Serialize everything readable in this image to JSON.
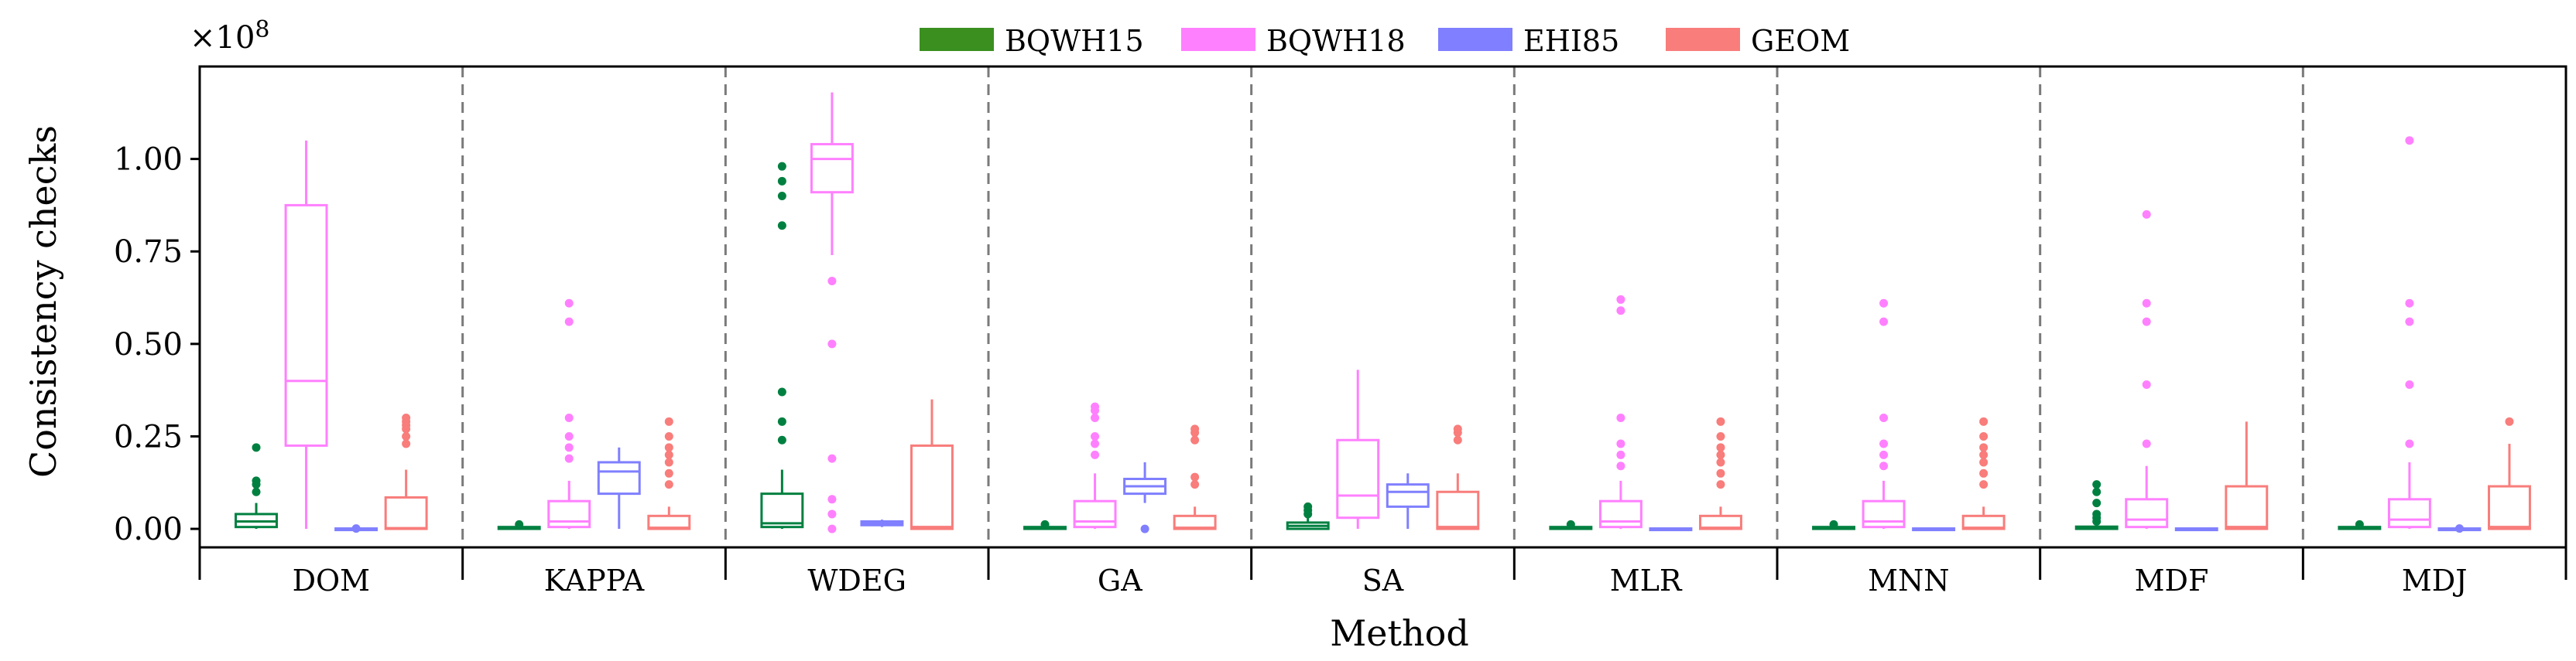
{
  "chart_data": {
    "type": "box",
    "title": "",
    "xlabel": "Method",
    "ylabel": "Consistency checks",
    "y_scale_label": "×10^8",
    "ylim": [
      -0.05,
      1.25
    ],
    "yticks": [
      0.0,
      0.25,
      0.5,
      0.75,
      1.0
    ],
    "ytick_labels": [
      "0.00",
      "0.25",
      "0.50",
      "0.75",
      "1.00"
    ],
    "legend_position": "top-center",
    "grid": false,
    "categories": [
      "DOM",
      "KAPPA",
      "WDEG",
      "GA",
      "SA",
      "MLR",
      "MNN",
      "MDF",
      "MDJ"
    ],
    "series": [
      {
        "name": "BQWH15",
        "color": "#008040",
        "legend_color": "#3a8f1f",
        "boxes": [
          {
            "q1": 0.005,
            "median": 0.02,
            "q3": 0.04,
            "whisker_low": 0.0,
            "whisker_high": 0.07,
            "outliers": [
              0.1,
              0.12,
              0.13,
              0.22
            ]
          },
          {
            "q1": 0.0,
            "median": 0.002,
            "q3": 0.005,
            "whisker_low": 0.0,
            "whisker_high": 0.007,
            "outliers": [
              0.012
            ]
          },
          {
            "q1": 0.005,
            "median": 0.015,
            "q3": 0.095,
            "whisker_low": 0.0,
            "whisker_high": 0.16,
            "outliers": [
              0.24,
              0.29,
              0.37,
              0.82,
              0.9,
              0.94,
              0.98
            ]
          },
          {
            "q1": 0.0,
            "median": 0.002,
            "q3": 0.005,
            "whisker_low": 0.0,
            "whisker_high": 0.007,
            "outliers": [
              0.012
            ]
          },
          {
            "q1": 0.0,
            "median": 0.008,
            "q3": 0.017,
            "whisker_low": 0.0,
            "whisker_high": 0.03,
            "outliers": [
              0.04,
              0.05,
              0.06
            ]
          },
          {
            "q1": 0.0,
            "median": 0.002,
            "q3": 0.005,
            "whisker_low": 0.0,
            "whisker_high": 0.007,
            "outliers": [
              0.012
            ]
          },
          {
            "q1": 0.0,
            "median": 0.002,
            "q3": 0.005,
            "whisker_low": 0.0,
            "whisker_high": 0.007,
            "outliers": [
              0.012
            ]
          },
          {
            "q1": 0.0,
            "median": 0.003,
            "q3": 0.006,
            "whisker_low": 0.0,
            "whisker_high": 0.012,
            "outliers": [
              0.02,
              0.03,
              0.04,
              0.07,
              0.1,
              0.12
            ]
          },
          {
            "q1": 0.0,
            "median": 0.002,
            "q3": 0.005,
            "whisker_low": 0.0,
            "whisker_high": 0.007,
            "outliers": [
              0.012
            ]
          }
        ]
      },
      {
        "name": "BQWH18",
        "color": "#ff80ff",
        "legend_color": "#ff80ff",
        "boxes": [
          {
            "q1": 0.225,
            "median": 0.4,
            "q3": 0.875,
            "whisker_low": 0.0,
            "whisker_high": 1.05,
            "outliers": []
          },
          {
            "q1": 0.005,
            "median": 0.02,
            "q3": 0.075,
            "whisker_low": 0.0,
            "whisker_high": 0.13,
            "outliers": [
              0.19,
              0.22,
              0.25,
              0.3,
              0.56,
              0.61
            ]
          },
          {
            "q1": 0.91,
            "median": 1.0,
            "q3": 1.04,
            "whisker_low": 0.74,
            "whisker_high": 1.18,
            "outliers": [
              0.67,
              0.5,
              0.19,
              0.08,
              0.04,
              0.0
            ]
          },
          {
            "q1": 0.005,
            "median": 0.02,
            "q3": 0.075,
            "whisker_low": 0.0,
            "whisker_high": 0.15,
            "outliers": [
              0.2,
              0.23,
              0.25,
              0.3,
              0.32,
              0.33
            ]
          },
          {
            "q1": 0.03,
            "median": 0.09,
            "q3": 0.24,
            "whisker_low": 0.0,
            "whisker_high": 0.43,
            "outliers": []
          },
          {
            "q1": 0.005,
            "median": 0.02,
            "q3": 0.075,
            "whisker_low": 0.0,
            "whisker_high": 0.13,
            "outliers": [
              0.17,
              0.2,
              0.23,
              0.3,
              0.59,
              0.62
            ]
          },
          {
            "q1": 0.005,
            "median": 0.02,
            "q3": 0.075,
            "whisker_low": 0.0,
            "whisker_high": 0.13,
            "outliers": [
              0.17,
              0.2,
              0.23,
              0.3,
              0.56,
              0.61
            ]
          },
          {
            "q1": 0.005,
            "median": 0.025,
            "q3": 0.08,
            "whisker_low": 0.0,
            "whisker_high": 0.17,
            "outliers": [
              0.23,
              0.39,
              0.56,
              0.61,
              0.85
            ]
          },
          {
            "q1": 0.005,
            "median": 0.025,
            "q3": 0.08,
            "whisker_low": 0.0,
            "whisker_high": 0.18,
            "outliers": [
              0.23,
              0.39,
              0.56,
              0.61,
              1.05
            ]
          }
        ]
      },
      {
        "name": "EHI85",
        "color": "#7f7fff",
        "legend_color": "#7f7fff",
        "boxes": [
          {
            "q1": 0.0,
            "median": 0.0,
            "q3": 0.001,
            "whisker_low": 0.0,
            "whisker_high": 0.001,
            "outliers": [
              0.001
            ]
          },
          {
            "q1": 0.095,
            "median": 0.155,
            "q3": 0.18,
            "whisker_low": 0.0,
            "whisker_high": 0.22,
            "outliers": []
          },
          {
            "q1": 0.01,
            "median": 0.015,
            "q3": 0.02,
            "whisker_low": 0.005,
            "whisker_high": 0.025,
            "outliers": []
          },
          {
            "q1": 0.095,
            "median": 0.115,
            "q3": 0.135,
            "whisker_low": 0.07,
            "whisker_high": 0.18,
            "outliers": [
              0.0
            ]
          },
          {
            "q1": 0.06,
            "median": 0.1,
            "q3": 0.12,
            "whisker_low": 0.0,
            "whisker_high": 0.15,
            "outliers": []
          },
          {
            "q1": 0.0,
            "median": 0.0,
            "q3": 0.001,
            "whisker_low": 0.0,
            "whisker_high": 0.001,
            "outliers": []
          },
          {
            "q1": 0.0,
            "median": 0.0,
            "q3": 0.001,
            "whisker_low": 0.0,
            "whisker_high": 0.001,
            "outliers": []
          },
          {
            "q1": 0.0,
            "median": 0.0,
            "q3": 0.001,
            "whisker_low": 0.0,
            "whisker_high": 0.001,
            "outliers": []
          },
          {
            "q1": 0.0,
            "median": 0.0,
            "q3": 0.001,
            "whisker_low": 0.0,
            "whisker_high": 0.001,
            "outliers": [
              0.001
            ]
          }
        ]
      },
      {
        "name": "GEOM",
        "color": "#f87d7b",
        "legend_color": "#f87d7b",
        "boxes": [
          {
            "q1": 0.0,
            "median": 0.002,
            "q3": 0.085,
            "whisker_low": 0.0,
            "whisker_high": 0.16,
            "outliers": [
              0.23,
              0.25,
              0.27,
              0.28,
              0.29,
              0.3
            ]
          },
          {
            "q1": 0.0,
            "median": 0.003,
            "q3": 0.035,
            "whisker_low": 0.0,
            "whisker_high": 0.06,
            "outliers": [
              0.12,
              0.15,
              0.18,
              0.2,
              0.22,
              0.25,
              0.29
            ]
          },
          {
            "q1": 0.0,
            "median": 0.005,
            "q3": 0.225,
            "whisker_low": 0.0,
            "whisker_high": 0.35,
            "outliers": []
          },
          {
            "q1": 0.0,
            "median": 0.003,
            "q3": 0.035,
            "whisker_low": 0.0,
            "whisker_high": 0.06,
            "outliers": [
              0.12,
              0.14,
              0.24,
              0.26,
              0.27
            ]
          },
          {
            "q1": 0.0,
            "median": 0.005,
            "q3": 0.1,
            "whisker_low": 0.0,
            "whisker_high": 0.15,
            "outliers": [
              0.24,
              0.26,
              0.27
            ]
          },
          {
            "q1": 0.0,
            "median": 0.003,
            "q3": 0.035,
            "whisker_low": 0.0,
            "whisker_high": 0.06,
            "outliers": [
              0.12,
              0.15,
              0.18,
              0.2,
              0.22,
              0.25,
              0.29
            ]
          },
          {
            "q1": 0.0,
            "median": 0.003,
            "q3": 0.035,
            "whisker_low": 0.0,
            "whisker_high": 0.06,
            "outliers": [
              0.12,
              0.15,
              0.18,
              0.2,
              0.22,
              0.25,
              0.29
            ]
          },
          {
            "q1": 0.0,
            "median": 0.005,
            "q3": 0.115,
            "whisker_low": 0.0,
            "whisker_high": 0.29,
            "outliers": []
          },
          {
            "q1": 0.0,
            "median": 0.005,
            "q3": 0.115,
            "whisker_low": 0.0,
            "whisker_high": 0.23,
            "outliers": [
              0.29
            ]
          }
        ]
      }
    ]
  }
}
